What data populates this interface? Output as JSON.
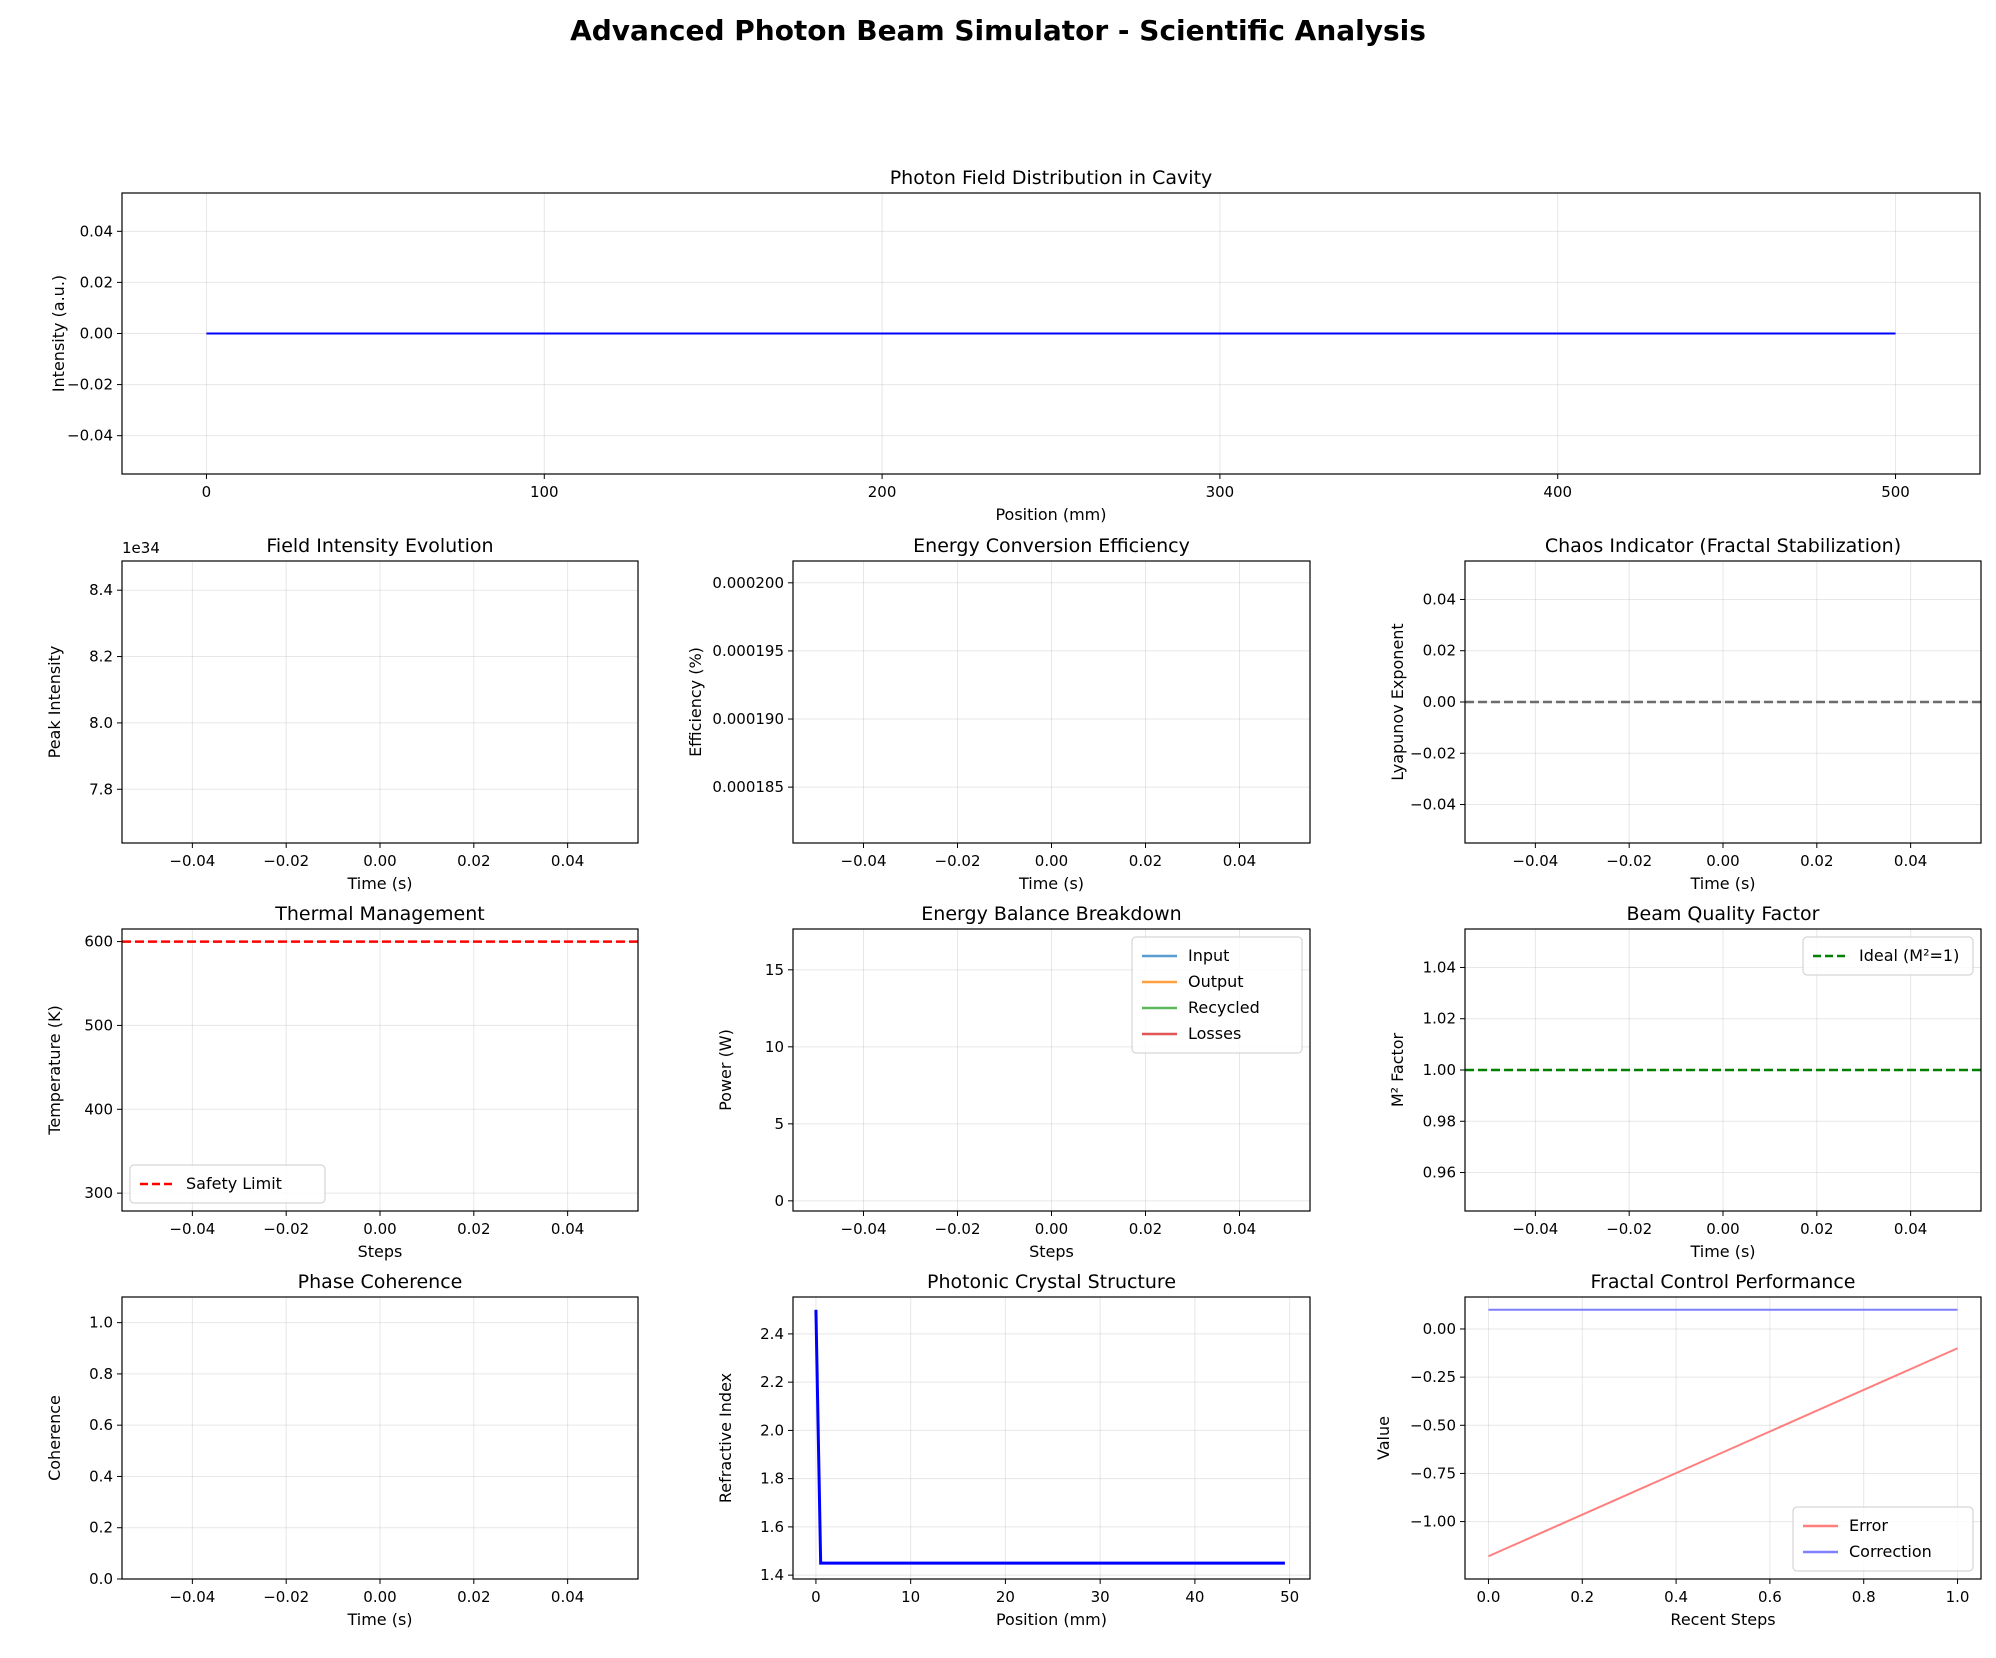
{
  "suptitle": "Advanced Photon Beam Simulator - Scientific Analysis",
  "chart_data": [
    {
      "id": "field",
      "type": "line",
      "title": "Photon Field Distribution in Cavity",
      "xlabel": "Position (mm)",
      "ylabel": "Intensity (a.u.)",
      "xlim": [
        -25,
        525
      ],
      "ylim": [
        -0.055,
        0.055
      ],
      "xticks": [
        0,
        100,
        200,
        300,
        400,
        500
      ],
      "xticklabels": [
        "0",
        "100",
        "200",
        "300",
        "400",
        "500"
      ],
      "yticks": [
        -0.04,
        -0.02,
        0,
        0.02,
        0.04
      ],
      "yticklabels": [
        "−0.04",
        "−0.02",
        "0.00",
        "0.02",
        "0.04"
      ],
      "grid": true,
      "series": [
        {
          "x": [
            0,
            500
          ],
          "y": [
            0,
            0
          ],
          "color": "#0000ff",
          "width": 2
        }
      ]
    },
    {
      "id": "intensity",
      "type": "line",
      "title": "Field Intensity Evolution",
      "xlabel": "Time (s)",
      "ylabel": "Peak Intensity",
      "offset_text": "1e34",
      "xlim": [
        -0.055,
        0.055
      ],
      "ylim": [
        7.638,
        8.488
      ],
      "xticks": [
        -0.04,
        -0.02,
        0,
        0.02,
        0.04
      ],
      "xticklabels": [
        "−0.04",
        "−0.02",
        "0.00",
        "0.02",
        "0.04"
      ],
      "yticks": [
        7.8,
        8.0,
        8.2,
        8.4
      ],
      "yticklabels": [
        "7.8",
        "8.0",
        "8.2",
        "8.4"
      ],
      "grid": true,
      "series": []
    },
    {
      "id": "efficiency",
      "type": "line",
      "title": "Energy Conversion Efficiency",
      "xlabel": "Time (s)",
      "ylabel": "Efficiency (%)",
      "xlim": [
        -0.055,
        0.055
      ],
      "ylim": [
        0.0001809,
        0.0002016
      ],
      "xticks": [
        -0.04,
        -0.02,
        0,
        0.02,
        0.04
      ],
      "xticklabels": [
        "−0.04",
        "−0.02",
        "0.00",
        "0.02",
        "0.04"
      ],
      "yticks": [
        0.000185,
        0.00019,
        0.000195,
        0.0002
      ],
      "yticklabels": [
        "0.000185",
        "0.000190",
        "0.000195",
        "0.000200"
      ],
      "grid": true,
      "series": []
    },
    {
      "id": "chaos",
      "type": "line",
      "title": "Chaos Indicator (Fractal Stabilization)",
      "xlabel": "Time (s)",
      "ylabel": "Lyapunov Exponent",
      "xlim": [
        -0.055,
        0.055
      ],
      "ylim": [
        -0.055,
        0.055
      ],
      "xticks": [
        -0.04,
        -0.02,
        0,
        0.02,
        0.04
      ],
      "xticklabels": [
        "−0.04",
        "−0.02",
        "0.00",
        "0.02",
        "0.04"
      ],
      "yticks": [
        -0.04,
        -0.02,
        0,
        0.02,
        0.04
      ],
      "yticklabels": [
        "−0.04",
        "−0.02",
        "0.00",
        "0.02",
        "0.04"
      ],
      "grid": true,
      "series": [],
      "hlines": [
        {
          "y": 0,
          "color": "#555555",
          "dash": true,
          "alpha": 0.85
        }
      ]
    },
    {
      "id": "thermal",
      "type": "line",
      "title": "Thermal Management",
      "xlabel": "Steps",
      "ylabel": "Temperature (K)",
      "xlim": [
        -0.055,
        0.055
      ],
      "ylim": [
        278.7,
        615
      ],
      "xticks": [
        -0.04,
        -0.02,
        0,
        0.02,
        0.04
      ],
      "xticklabels": [
        "−0.04",
        "−0.02",
        "0.00",
        "0.02",
        "0.04"
      ],
      "yticks": [
        300,
        400,
        500,
        600
      ],
      "yticklabels": [
        "300",
        "400",
        "500",
        "600"
      ],
      "grid": true,
      "series": [],
      "hlines": [
        {
          "y": 600,
          "color": "#ff0000",
          "dash": true,
          "label": "Safety Limit"
        }
      ],
      "legend": {
        "position": "lower-left",
        "entries": [
          {
            "label": "Safety Limit",
            "color": "#ff0000",
            "dash": true
          }
        ]
      }
    },
    {
      "id": "balance",
      "type": "line",
      "title": "Energy Balance Breakdown",
      "xlabel": "Steps",
      "ylabel": "Power (W)",
      "xlim": [
        -0.055,
        0.055
      ],
      "ylim": [
        -0.66,
        17.65
      ],
      "xticks": [
        -0.04,
        -0.02,
        0,
        0.02,
        0.04
      ],
      "xticklabels": [
        "−0.04",
        "−0.02",
        "0.00",
        "0.02",
        "0.04"
      ],
      "yticks": [
        0,
        5,
        10,
        15
      ],
      "yticklabels": [
        "0",
        "5",
        "10",
        "15"
      ],
      "grid": true,
      "series": [],
      "legend": {
        "position": "upper-right",
        "entries": [
          {
            "label": "Input",
            "color": "#5a9bd0"
          },
          {
            "label": "Output",
            "color": "#ffa040"
          },
          {
            "label": "Recycled",
            "color": "#5cb85c"
          },
          {
            "label": "Losses",
            "color": "#e05555"
          }
        ]
      }
    },
    {
      "id": "beam",
      "type": "line",
      "title": "Beam Quality Factor",
      "xlabel": "Time (s)",
      "ylabel": "M² Factor",
      "xlim": [
        -0.055,
        0.055
      ],
      "ylim": [
        0.945,
        1.055
      ],
      "xticks": [
        -0.04,
        -0.02,
        0,
        0.02,
        0.04
      ],
      "xticklabels": [
        "−0.04",
        "−0.02",
        "0.00",
        "0.02",
        "0.04"
      ],
      "yticks": [
        0.96,
        0.98,
        1.0,
        1.02,
        1.04
      ],
      "yticklabels": [
        "0.96",
        "0.98",
        "1.00",
        "1.02",
        "1.04"
      ],
      "grid": true,
      "series": [],
      "hlines": [
        {
          "y": 1,
          "color": "#008000",
          "dash": true
        }
      ],
      "legend": {
        "position": "upper-right",
        "entries": [
          {
            "label": "Ideal (M²=1)",
            "color": "#008000",
            "dash": true
          }
        ]
      }
    },
    {
      "id": "coherence",
      "type": "line",
      "title": "Phase Coherence",
      "xlabel": "Time (s)",
      "ylabel": "Coherence",
      "xlim": [
        -0.055,
        0.055
      ],
      "ylim": [
        0,
        1.1
      ],
      "xticks": [
        -0.04,
        -0.02,
        0,
        0.02,
        0.04
      ],
      "xticklabels": [
        "−0.04",
        "−0.02",
        "0.00",
        "0.02",
        "0.04"
      ],
      "yticks": [
        0,
        0.2,
        0.4,
        0.6,
        0.8,
        1.0
      ],
      "yticklabels": [
        "0.0",
        "0.2",
        "0.4",
        "0.6",
        "0.8",
        "1.0"
      ],
      "grid": true,
      "series": []
    },
    {
      "id": "crystal",
      "type": "line",
      "title": "Photonic Crystal Structure",
      "xlabel": "Position (mm)",
      "ylabel": "Refractive Index",
      "xlim": [
        -2.42,
        52.15
      ],
      "ylim": [
        1.384,
        2.553
      ],
      "xticks": [
        0,
        10,
        20,
        30,
        40,
        50
      ],
      "xticklabels": [
        "0",
        "10",
        "20",
        "30",
        "40",
        "50"
      ],
      "yticks": [
        1.4,
        1.6,
        1.8,
        2.0,
        2.2,
        2.4
      ],
      "yticklabels": [
        "1.4",
        "1.6",
        "1.8",
        "2.0",
        "2.2",
        "2.4"
      ],
      "grid": true,
      "series": [
        {
          "x": [
            0,
            0.5,
            49.5
          ],
          "y": [
            2.5,
            1.45,
            1.45
          ],
          "color": "#0000ff",
          "width": 3
        }
      ]
    },
    {
      "id": "fractal",
      "type": "line",
      "title": "Fractal Control Performance",
      "xlabel": "Recent Steps",
      "ylabel": "Value",
      "xlim": [
        -0.05,
        1.05
      ],
      "ylim": [
        -1.298,
        0.166
      ],
      "xticks": [
        0,
        0.2,
        0.4,
        0.6,
        0.8,
        1.0
      ],
      "xticklabels": [
        "0.0",
        "0.2",
        "0.4",
        "0.6",
        "0.8",
        "1.0"
      ],
      "yticks": [
        -1.0,
        -0.75,
        -0.5,
        -0.25,
        0
      ],
      "yticklabels": [
        "−1.00",
        "−0.75",
        "−0.50",
        "−0.25",
        "0.00"
      ],
      "grid": true,
      "series": [
        {
          "name": "Error",
          "x": [
            0,
            1
          ],
          "y": [
            -1.18,
            -0.1
          ],
          "color": "#ff7f7f",
          "width": 2
        },
        {
          "name": "Correction",
          "x": [
            0,
            1
          ],
          "y": [
            0.1,
            0.1
          ],
          "color": "#7f7fff",
          "width": 2
        }
      ],
      "legend": {
        "position": "lower-right",
        "entries": [
          {
            "label": "Error",
            "color": "#ff7f7f"
          },
          {
            "label": "Correction",
            "color": "#7f7fff"
          }
        ]
      }
    }
  ]
}
